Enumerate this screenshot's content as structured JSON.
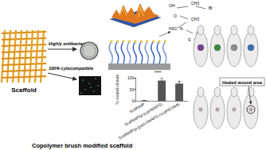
{
  "labels": {
    "scaffold": "Scaffold",
    "antibacterial": "Highly antibacterial",
    "cytocompatible": "100% cytocompatible",
    "healed": "Healed wound area",
    "caption": "Copolymer brush modified scaffold"
  },
  "chemical_structure": [
    "OH",
    "CH3",
    "Br",
    "O",
    "CH3",
    "H3C",
    "N",
    "O",
    "S",
    "O"
  ],
  "chart_data": {
    "type": "bar",
    "categories": [
      "ScaffoldP",
      "ScaffoldP(p-g-pDMAPS)",
      "ScaffoldP(p-grad-DMAPS-co-pPEGMA)"
    ],
    "values": [
      2,
      88,
      75
    ],
    "errors": [
      1,
      12,
      10
    ],
    "color": "#555555",
    "y_label": "% wound closure",
    "annotation": "***",
    "ylim": [
      0,
      100
    ],
    "yticks": [
      0,
      50,
      100
    ],
    "grid": false
  }
}
